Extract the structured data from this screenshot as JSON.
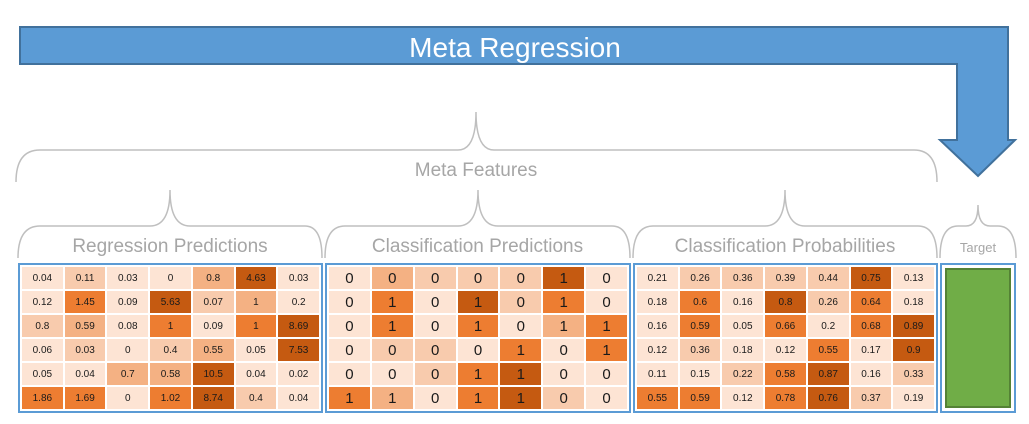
{
  "title": "Meta Regression",
  "meta_features_label": "Meta Features",
  "groups": [
    {
      "key": "regression",
      "label": "Regression Predictions",
      "rows": [
        [
          "0.04",
          "0.11",
          "0.03",
          "0",
          "0.8",
          "4.63",
          "0.03"
        ],
        [
          "0.12",
          "1.45",
          "0.09",
          "5.63",
          "0.07",
          "1",
          "0.2"
        ],
        [
          "0.8",
          "0.59",
          "0.08",
          "1",
          "0.09",
          "1",
          "8.69"
        ],
        [
          "0.06",
          "0.03",
          "0",
          "0.4",
          "0.55",
          "0.05",
          "7.53"
        ],
        [
          "0.05",
          "0.04",
          "0.7",
          "0.58",
          "10.5",
          "0.04",
          "0.02"
        ],
        [
          "1.86",
          "1.69",
          "0",
          "1.02",
          "8.74",
          "0.4",
          "0.04"
        ]
      ],
      "shades": [
        [
          0,
          1,
          0,
          0,
          2,
          4,
          0
        ],
        [
          0,
          3,
          0,
          4,
          1,
          2,
          0
        ],
        [
          1,
          2,
          0,
          3,
          0,
          3,
          4
        ],
        [
          0,
          1,
          0,
          1,
          2,
          0,
          4
        ],
        [
          0,
          0,
          2,
          2,
          4,
          0,
          0
        ],
        [
          3,
          3,
          0,
          3,
          4,
          1,
          0
        ]
      ]
    },
    {
      "key": "classification",
      "label": "Classification Predictions",
      "rows": [
        [
          "0",
          "0",
          "0",
          "0",
          "0",
          "1",
          "0"
        ],
        [
          "0",
          "1",
          "0",
          "1",
          "0",
          "1",
          "0"
        ],
        [
          "0",
          "1",
          "0",
          "1",
          "0",
          "1",
          "1"
        ],
        [
          "0",
          "0",
          "0",
          "0",
          "1",
          "0",
          "1"
        ],
        [
          "0",
          "0",
          "0",
          "1",
          "1",
          "0",
          "0"
        ],
        [
          "1",
          "1",
          "0",
          "1",
          "1",
          "0",
          "0"
        ]
      ],
      "shades": [
        [
          0,
          2,
          1,
          1,
          1,
          4,
          0
        ],
        [
          0,
          3,
          0,
          4,
          1,
          3,
          0
        ],
        [
          0,
          3,
          0,
          3,
          0,
          2,
          3
        ],
        [
          0,
          1,
          1,
          0,
          3,
          0,
          3
        ],
        [
          0,
          0,
          1,
          3,
          4,
          0,
          0
        ],
        [
          3,
          2,
          0,
          3,
          4,
          1,
          0
        ]
      ]
    },
    {
      "key": "probabilities",
      "label": "Classification Probabilities",
      "rows": [
        [
          "0.21",
          "0.26",
          "0.36",
          "0.39",
          "0.44",
          "0.75",
          "0.13"
        ],
        [
          "0.18",
          "0.6",
          "0.16",
          "0.8",
          "0.26",
          "0.64",
          "0.18"
        ],
        [
          "0.16",
          "0.59",
          "0.05",
          "0.66",
          "0.2",
          "0.68",
          "0.89"
        ],
        [
          "0.12",
          "0.36",
          "0.18",
          "0.12",
          "0.55",
          "0.17",
          "0.9"
        ],
        [
          "0.11",
          "0.15",
          "0.22",
          "0.58",
          "0.87",
          "0.16",
          "0.33"
        ],
        [
          "0.55",
          "0.59",
          "0.12",
          "0.78",
          "0.76",
          "0.37",
          "0.19"
        ]
      ],
      "shades": [
        [
          0,
          1,
          1,
          1,
          1,
          4,
          0
        ],
        [
          0,
          3,
          0,
          4,
          1,
          3,
          0
        ],
        [
          0,
          3,
          0,
          3,
          0,
          3,
          4
        ],
        [
          0,
          1,
          0,
          0,
          3,
          0,
          4
        ],
        [
          0,
          0,
          1,
          3,
          4,
          0,
          1
        ],
        [
          3,
          3,
          0,
          3,
          4,
          1,
          0
        ]
      ]
    }
  ],
  "target_label": "Target",
  "colors": {
    "arrow": "#5b9bd5",
    "arrow_border": "#41719c",
    "brace": "#bfbfbf",
    "target_fill": "#70ad47",
    "shade_levels": [
      "#fde4d4",
      "#f8cbad",
      "#f4b183",
      "#ed7d31",
      "#c55a11"
    ]
  }
}
